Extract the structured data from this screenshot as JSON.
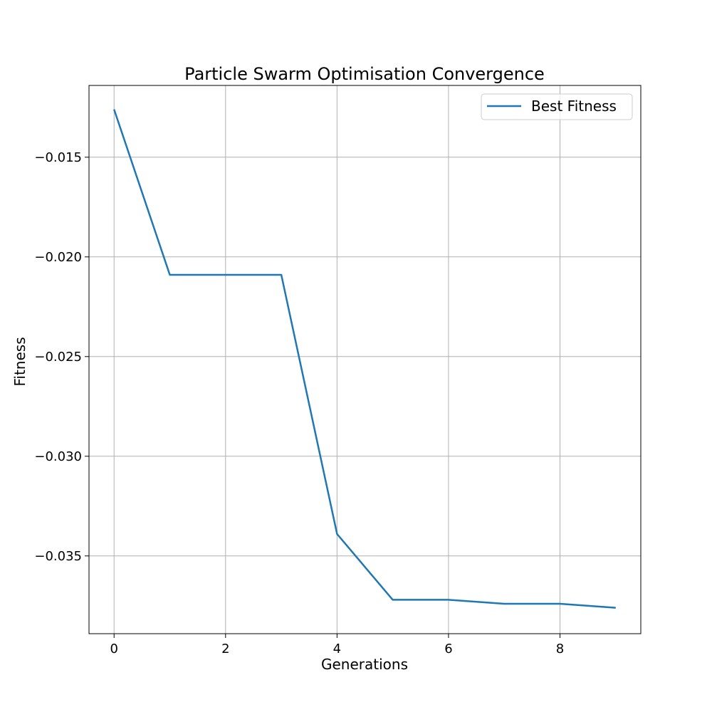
{
  "chart_data": {
    "type": "line",
    "title": "Particle Swarm Optimisation Convergence",
    "xlabel": "Generations",
    "ylabel": "Fitness",
    "x": [
      0,
      1,
      2,
      3,
      4,
      5,
      6,
      7,
      8,
      9
    ],
    "series": [
      {
        "name": "Best Fitness",
        "color": "#1f77b4",
        "values": [
          -0.0126,
          -0.0209,
          -0.0209,
          -0.0209,
          -0.0339,
          -0.0372,
          -0.0372,
          -0.0374,
          -0.0374,
          -0.0376
        ]
      }
    ],
    "xlim": [
      -0.45,
      9.45
    ],
    "ylim": [
      -0.0389,
      -0.0114
    ],
    "xticks": [
      0,
      2,
      4,
      6,
      8
    ],
    "xtick_labels": [
      "0",
      "2",
      "4",
      "6",
      "8"
    ],
    "yticks": [
      -0.015,
      -0.02,
      -0.025,
      -0.03,
      -0.035
    ],
    "ytick_labels": [
      "−0.015",
      "−0.020",
      "−0.025",
      "−0.030",
      "−0.035"
    ],
    "grid": true,
    "legend_position": "top-right"
  }
}
